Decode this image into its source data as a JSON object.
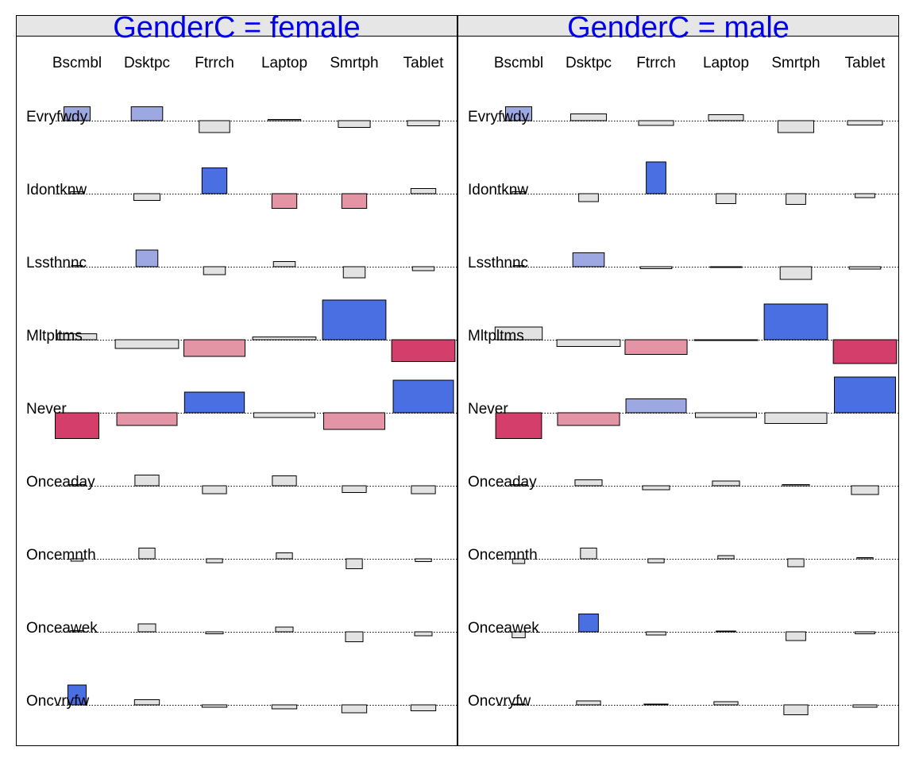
{
  "chart_data": {
    "type": "bar",
    "description_style": "association plot",
    "colors": {
      "strong_positive": "#4a6fe3",
      "weak_positive": "#9da8e2",
      "neutral": "#e2e2e2",
      "weak_negative": "#e495a5",
      "strong_negative": "#d33f6a",
      "strip": "#e6e6e6",
      "title": "#0000ee"
    },
    "columns": [
      "Bscmbl",
      "Dsktpc",
      "Ftrrch",
      "Laptop",
      "Smrtph",
      "Tablet"
    ],
    "rows": [
      "Evryfwdy",
      "Idontknw",
      "Lssthnnc",
      "Mltpltms",
      "Never",
      "Onceaday",
      "Oncemnth",
      "Onceawek",
      "Oncvryfw"
    ],
    "panels": [
      {
        "title": "GenderC = female",
        "cells": [
          [
            {
              "w": 0.6,
              "h": 0.35,
              "c": "weak_positive"
            },
            {
              "w": 0.72,
              "h": 0.35,
              "c": "weak_positive"
            },
            {
              "w": 0.7,
              "h": -0.3,
              "c": "neutral"
            },
            {
              "w": 0.75,
              "h": 0.03,
              "c": "neutral"
            },
            {
              "w": 0.73,
              "h": -0.17,
              "c": "neutral"
            },
            {
              "w": 0.73,
              "h": -0.13,
              "c": "neutral"
            }
          ],
          [
            {
              "w": 0.3,
              "h": 0.05,
              "c": "neutral"
            },
            {
              "w": 0.6,
              "h": -0.17,
              "c": "neutral"
            },
            {
              "w": 0.57,
              "h": 0.65,
              "c": "strong_positive"
            },
            {
              "w": 0.57,
              "h": -0.37,
              "c": "weak_negative"
            },
            {
              "w": 0.57,
              "h": -0.37,
              "c": "weak_negative"
            },
            {
              "w": 0.57,
              "h": 0.13,
              "c": "neutral"
            }
          ],
          [
            {
              "w": 0.25,
              "h": 0.03,
              "c": "neutral"
            },
            {
              "w": 0.5,
              "h": 0.42,
              "c": "weak_positive"
            },
            {
              "w": 0.5,
              "h": -0.2,
              "c": "neutral"
            },
            {
              "w": 0.5,
              "h": 0.13,
              "c": "neutral"
            },
            {
              "w": 0.5,
              "h": -0.28,
              "c": "neutral"
            },
            {
              "w": 0.5,
              "h": -0.1,
              "c": "neutral"
            }
          ],
          [
            {
              "w": 0.9,
              "h": 0.15,
              "c": "neutral"
            },
            {
              "w": 1.45,
              "h": -0.22,
              "c": "neutral"
            },
            {
              "w": 1.4,
              "h": -0.42,
              "c": "weak_negative"
            },
            {
              "w": 1.45,
              "h": 0.07,
              "c": "neutral"
            },
            {
              "w": 1.45,
              "h": 1.0,
              "c": "strong_positive"
            },
            {
              "w": 1.45,
              "h": -0.55,
              "c": "strong_negative"
            }
          ],
          [
            {
              "w": 1.0,
              "h": -0.65,
              "c": "strong_negative"
            },
            {
              "w": 1.38,
              "h": -0.32,
              "c": "weak_negative"
            },
            {
              "w": 1.37,
              "h": 0.52,
              "c": "strong_positive"
            },
            {
              "w": 1.4,
              "h": -0.12,
              "c": "neutral"
            },
            {
              "w": 1.4,
              "h": -0.42,
              "c": "weak_negative"
            },
            {
              "w": 1.38,
              "h": 0.82,
              "c": "strong_positive"
            }
          ],
          [
            {
              "w": 0.35,
              "h": 0.03,
              "c": "neutral"
            },
            {
              "w": 0.55,
              "h": 0.27,
              "c": "neutral"
            },
            {
              "w": 0.55,
              "h": -0.2,
              "c": "neutral"
            },
            {
              "w": 0.55,
              "h": 0.25,
              "c": "neutral"
            },
            {
              "w": 0.55,
              "h": -0.17,
              "c": "neutral"
            },
            {
              "w": 0.55,
              "h": -0.2,
              "c": "neutral"
            }
          ],
          [
            {
              "w": 0.28,
              "h": -0.06,
              "c": "neutral"
            },
            {
              "w": 0.37,
              "h": 0.27,
              "c": "neutral"
            },
            {
              "w": 0.37,
              "h": -0.1,
              "c": "neutral"
            },
            {
              "w": 0.37,
              "h": 0.15,
              "c": "neutral"
            },
            {
              "w": 0.37,
              "h": -0.25,
              "c": "neutral"
            },
            {
              "w": 0.37,
              "h": -0.07,
              "c": "neutral"
            }
          ],
          [
            {
              "w": 0.3,
              "h": 0.03,
              "c": "neutral"
            },
            {
              "w": 0.4,
              "h": 0.2,
              "c": "neutral"
            },
            {
              "w": 0.4,
              "h": -0.05,
              "c": "neutral"
            },
            {
              "w": 0.4,
              "h": 0.12,
              "c": "neutral"
            },
            {
              "w": 0.4,
              "h": -0.25,
              "c": "neutral"
            },
            {
              "w": 0.4,
              "h": -0.1,
              "c": "neutral"
            }
          ],
          [
            {
              "w": 0.42,
              "h": 0.5,
              "c": "strong_positive"
            },
            {
              "w": 0.57,
              "h": 0.13,
              "c": "neutral"
            },
            {
              "w": 0.57,
              "h": -0.06,
              "c": "neutral"
            },
            {
              "w": 0.57,
              "h": -0.1,
              "c": "neutral"
            },
            {
              "w": 0.57,
              "h": -0.2,
              "c": "neutral"
            },
            {
              "w": 0.57,
              "h": -0.15,
              "c": "neutral"
            }
          ]
        ]
      },
      {
        "title": "GenderC = male",
        "cells": [
          [
            {
              "w": 0.6,
              "h": 0.35,
              "c": "weak_positive"
            },
            {
              "w": 0.82,
              "h": 0.17,
              "c": "neutral"
            },
            {
              "w": 0.8,
              "h": -0.12,
              "c": "neutral"
            },
            {
              "w": 0.8,
              "h": 0.15,
              "c": "neutral"
            },
            {
              "w": 0.82,
              "h": -0.3,
              "c": "neutral"
            },
            {
              "w": 0.8,
              "h": -0.11,
              "c": "neutral"
            }
          ],
          [
            {
              "w": 0.3,
              "h": 0.05,
              "c": "neutral"
            },
            {
              "w": 0.45,
              "h": -0.2,
              "c": "neutral"
            },
            {
              "w": 0.45,
              "h": 0.8,
              "c": "strong_positive"
            },
            {
              "w": 0.45,
              "h": -0.25,
              "c": "neutral"
            },
            {
              "w": 0.45,
              "h": -0.27,
              "c": "neutral"
            },
            {
              "w": 0.45,
              "h": -0.1,
              "c": "neutral"
            }
          ],
          [
            {
              "w": 0.25,
              "h": 0.03,
              "c": "neutral"
            },
            {
              "w": 0.72,
              "h": 0.35,
              "c": "weak_positive"
            },
            {
              "w": 0.72,
              "h": -0.05,
              "c": "neutral"
            },
            {
              "w": 0.72,
              "h": -0.02,
              "c": "neutral"
            },
            {
              "w": 0.72,
              "h": -0.32,
              "c": "neutral"
            },
            {
              "w": 0.72,
              "h": -0.06,
              "c": "neutral"
            }
          ],
          [
            {
              "w": 1.08,
              "h": 0.32,
              "c": "neutral"
            },
            {
              "w": 1.45,
              "h": -0.17,
              "c": "neutral"
            },
            {
              "w": 1.42,
              "h": -0.37,
              "c": "weak_negative"
            },
            {
              "w": 1.45,
              "h": -0.02,
              "c": "neutral"
            },
            {
              "w": 1.45,
              "h": 0.9,
              "c": "strong_positive"
            },
            {
              "w": 1.45,
              "h": -0.6,
              "c": "strong_negative"
            }
          ],
          [
            {
              "w": 1.05,
              "h": -0.65,
              "c": "strong_negative"
            },
            {
              "w": 1.42,
              "h": -0.32,
              "c": "weak_negative"
            },
            {
              "w": 1.38,
              "h": 0.35,
              "c": "weak_positive"
            },
            {
              "w": 1.4,
              "h": -0.12,
              "c": "neutral"
            },
            {
              "w": 1.42,
              "h": -0.27,
              "c": "neutral"
            },
            {
              "w": 1.4,
              "h": 0.9,
              "c": "strong_positive"
            }
          ],
          [
            {
              "w": 0.35,
              "h": 0.03,
              "c": "neutral"
            },
            {
              "w": 0.62,
              "h": 0.15,
              "c": "neutral"
            },
            {
              "w": 0.62,
              "h": -0.1,
              "c": "neutral"
            },
            {
              "w": 0.62,
              "h": 0.12,
              "c": "neutral"
            },
            {
              "w": 0.62,
              "h": 0.03,
              "c": "neutral"
            },
            {
              "w": 0.62,
              "h": -0.22,
              "c": "neutral"
            }
          ],
          [
            {
              "w": 0.28,
              "h": -0.12,
              "c": "neutral"
            },
            {
              "w": 0.37,
              "h": 0.27,
              "c": "neutral"
            },
            {
              "w": 0.37,
              "h": -0.1,
              "c": "neutral"
            },
            {
              "w": 0.37,
              "h": 0.08,
              "c": "neutral"
            },
            {
              "w": 0.37,
              "h": -0.2,
              "c": "neutral"
            },
            {
              "w": 0.37,
              "h": 0.03,
              "c": "neutral"
            }
          ],
          [
            {
              "w": 0.3,
              "h": -0.15,
              "c": "neutral"
            },
            {
              "w": 0.45,
              "h": 0.45,
              "c": "strong_positive"
            },
            {
              "w": 0.45,
              "h": -0.08,
              "c": "neutral"
            },
            {
              "w": 0.45,
              "h": 0.02,
              "c": "neutral"
            },
            {
              "w": 0.45,
              "h": -0.22,
              "c": "neutral"
            },
            {
              "w": 0.45,
              "h": -0.05,
              "c": "neutral"
            }
          ],
          [
            {
              "w": 0.3,
              "h": 0.02,
              "c": "neutral"
            },
            {
              "w": 0.55,
              "h": 0.1,
              "c": "neutral"
            },
            {
              "w": 0.55,
              "h": 0.02,
              "c": "neutral"
            },
            {
              "w": 0.55,
              "h": 0.08,
              "c": "neutral"
            },
            {
              "w": 0.55,
              "h": -0.25,
              "c": "neutral"
            },
            {
              "w": 0.55,
              "h": -0.06,
              "c": "neutral"
            }
          ]
        ]
      }
    ]
  }
}
